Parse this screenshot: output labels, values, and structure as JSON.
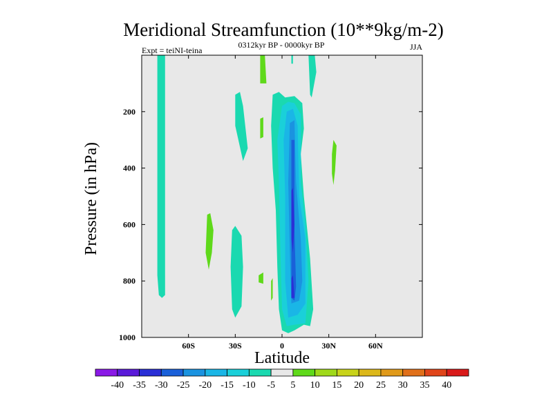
{
  "chart_data": {
    "type": "contour",
    "title": "Meridional Streamfunction (10**9kg/m-2)",
    "left_string": "Expt = teiNI-teina",
    "center_string": "0312kyr BP - 0000kyr BP",
    "right_string": "JJA",
    "xlabel": "Latitude",
    "ylabel": "Pressure (in hPa)",
    "xlim": [
      -90,
      90
    ],
    "ylim": [
      0,
      1000
    ],
    "y_reversed": true,
    "x_ticks": [
      {
        "value": -60,
        "label": "60S"
      },
      {
        "value": -30,
        "label": "30S"
      },
      {
        "value": 0,
        "label": "0"
      },
      {
        "value": 30,
        "label": "30N"
      },
      {
        "value": 60,
        "label": "60N"
      }
    ],
    "y_ticks": [
      {
        "value": 200,
        "label": "200"
      },
      {
        "value": 400,
        "label": "400"
      },
      {
        "value": 600,
        "label": "600"
      },
      {
        "value": 800,
        "label": "800"
      },
      {
        "value": 1000,
        "label": "1000"
      }
    ],
    "colorbar": {
      "labels": [
        "-40",
        "-35",
        "-30",
        "-25",
        "-20",
        "-15",
        "-10",
        "-5",
        "5",
        "10",
        "15",
        "20",
        "25",
        "30",
        "35",
        "40"
      ],
      "colors": [
        "#8a19e6",
        "#5a1ad9",
        "#2a2fd6",
        "#1a60d9",
        "#1a93e0",
        "#1ab6e6",
        "#1ad0d9",
        "#1ad9b0",
        "#e8e8e8",
        "#5fd91a",
        "#9fd91a",
        "#c8d31a",
        "#dcb81a",
        "#e09a1a",
        "#e0701a",
        "#e0451a",
        "#d91a1a"
      ]
    },
    "background_color": "#e8e8e8",
    "contour_fills": [
      {
        "level": -5,
        "color": "#1ad9b0",
        "points": [
          [
            -80,
            0
          ],
          [
            -75,
            0
          ],
          [
            -75,
            850
          ],
          [
            -77,
            860
          ],
          [
            -79,
            850
          ],
          [
            -80,
            780
          ]
        ]
      },
      {
        "level": -5,
        "color": "#1ad9b0",
        "points": [
          [
            -30,
            140
          ],
          [
            -27,
            130
          ],
          [
            -25,
            180
          ],
          [
            -22,
            330
          ],
          [
            -25,
            375
          ],
          [
            -30,
            250
          ]
        ]
      },
      {
        "level": -5,
        "color": "#1ad9b0",
        "points": [
          [
            -32,
            620
          ],
          [
            -30,
            605
          ],
          [
            -26,
            640
          ],
          [
            -25,
            750
          ],
          [
            -26,
            890
          ],
          [
            -30,
            930
          ],
          [
            -32,
            900
          ],
          [
            -33,
            750
          ]
        ]
      },
      {
        "level": -5,
        "color": "#1ad9b0",
        "points": [
          [
            -6,
            140
          ],
          [
            -2,
            130
          ],
          [
            2,
            150
          ],
          [
            8,
            145
          ],
          [
            13,
            170
          ],
          [
            14,
            260
          ],
          [
            12,
            350
          ],
          [
            14,
            500
          ],
          [
            18,
            720
          ],
          [
            20,
            900
          ],
          [
            18,
            960
          ],
          [
            14,
            955
          ],
          [
            8,
            975
          ],
          [
            4,
            985
          ],
          [
            0,
            975
          ],
          [
            -2,
            900
          ],
          [
            -3,
            750
          ],
          [
            -4,
            550
          ],
          [
            -6,
            400
          ],
          [
            -7,
            250
          ]
        ]
      },
      {
        "level": -5,
        "color": "#1ad9b0",
        "points": [
          [
            17,
            0
          ],
          [
            21,
            0
          ],
          [
            22,
            60
          ],
          [
            19,
            150
          ],
          [
            18,
            140
          ]
        ]
      },
      {
        "level": -5,
        "color": "#1ad9b0",
        "points": [
          [
            6,
            0
          ],
          [
            7,
            0
          ],
          [
            7,
            30
          ],
          [
            6,
            30
          ]
        ]
      },
      {
        "level": -10,
        "color": "#1ad0d9",
        "points": [
          [
            0,
            180
          ],
          [
            4,
            165
          ],
          [
            8,
            170
          ],
          [
            12,
            210
          ],
          [
            12,
            450
          ],
          [
            15,
            600
          ],
          [
            17,
            800
          ],
          [
            15,
            950
          ],
          [
            8,
            955
          ],
          [
            3,
            960
          ],
          [
            0,
            900
          ],
          [
            -1,
            700
          ],
          [
            -2,
            450
          ],
          [
            -3,
            300
          ]
        ]
      },
      {
        "level": -15,
        "color": "#1ab6e6",
        "points": [
          [
            3,
            200
          ],
          [
            7,
            190
          ],
          [
            10,
            250
          ],
          [
            11,
            500
          ],
          [
            15,
            650
          ],
          [
            15,
            880
          ],
          [
            10,
            920
          ],
          [
            4,
            930
          ],
          [
            2,
            800
          ],
          [
            2,
            500
          ],
          [
            1,
            300
          ]
        ]
      },
      {
        "level": -20,
        "color": "#1a93e0",
        "points": [
          [
            5,
            240
          ],
          [
            8,
            230
          ],
          [
            9,
            450
          ],
          [
            12,
            650
          ],
          [
            13,
            800
          ],
          [
            11,
            870
          ],
          [
            6,
            880
          ],
          [
            5,
            700
          ],
          [
            4,
            450
          ]
        ]
      },
      {
        "level": -25,
        "color": "#1a60d9",
        "points": [
          [
            6,
            300
          ],
          [
            8,
            300
          ],
          [
            8,
            620
          ],
          [
            9,
            820
          ],
          [
            8,
            870
          ],
          [
            6,
            860
          ],
          [
            6,
            650
          ]
        ]
      },
      {
        "level": -30,
        "color": "#2a2fd6",
        "points": [
          [
            6,
            480
          ],
          [
            7,
            470
          ],
          [
            8,
            600
          ],
          [
            7,
            700
          ],
          [
            6,
            650
          ]
        ]
      },
      {
        "level": -30,
        "color": "#2a2fd6",
        "points": [
          [
            6,
            790
          ],
          [
            7,
            780
          ],
          [
            8,
            860
          ],
          [
            6,
            860
          ]
        ]
      },
      {
        "level": 5,
        "color": "#5fd91a",
        "points": [
          [
            -14,
            0
          ],
          [
            -11,
            0
          ],
          [
            -10,
            100
          ],
          [
            -14,
            100
          ]
        ]
      },
      {
        "level": 5,
        "color": "#5fd91a",
        "points": [
          [
            -14,
            225
          ],
          [
            -12,
            220
          ],
          [
            -12,
            290
          ],
          [
            -14,
            295
          ]
        ]
      },
      {
        "level": 5,
        "color": "#5fd91a",
        "points": [
          [
            -48,
            565
          ],
          [
            -46,
            560
          ],
          [
            -44,
            620
          ],
          [
            -45,
            700
          ],
          [
            -47,
            760
          ],
          [
            -49,
            700
          ]
        ]
      },
      {
        "level": 5,
        "color": "#5fd91a",
        "points": [
          [
            32,
            350
          ],
          [
            33,
            300
          ],
          [
            35,
            320
          ],
          [
            34,
            410
          ],
          [
            33,
            460
          ],
          [
            32,
            420
          ]
        ]
      },
      {
        "level": 5,
        "color": "#5fd91a",
        "points": [
          [
            -15,
            780
          ],
          [
            -12,
            770
          ],
          [
            -12,
            810
          ],
          [
            -15,
            805
          ]
        ]
      },
      {
        "level": 5,
        "color": "#5fd91a",
        "points": [
          [
            -7,
            800
          ],
          [
            -6,
            790
          ],
          [
            -6,
            860
          ],
          [
            -7,
            870
          ]
        ]
      }
    ]
  }
}
